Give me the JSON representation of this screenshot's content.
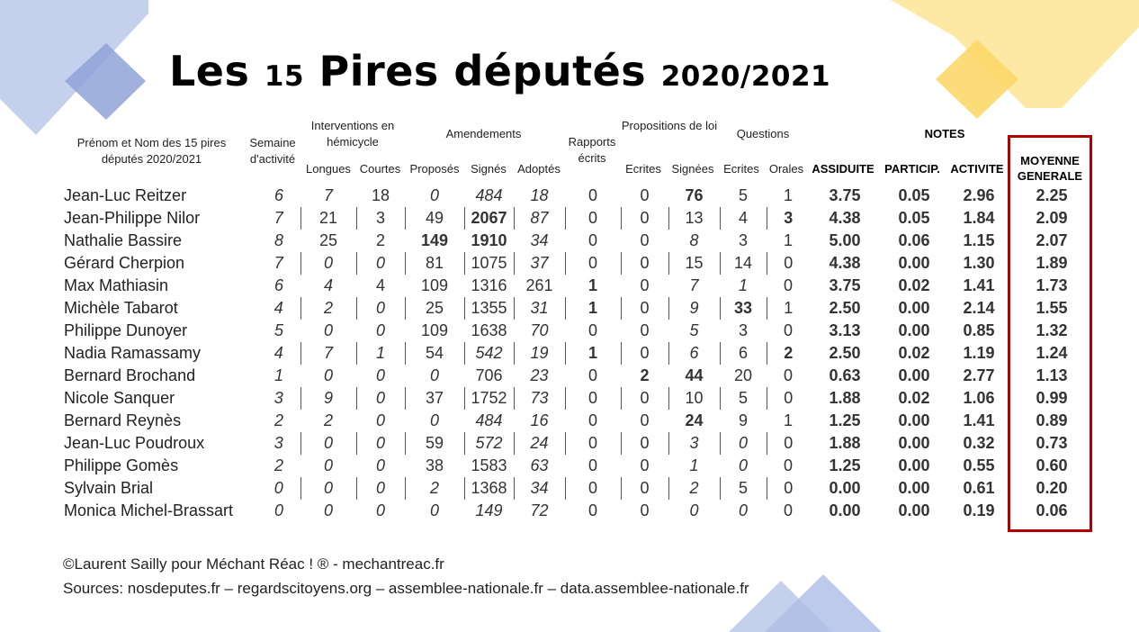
{
  "title": {
    "main_a": "Les ",
    "num": "15",
    "main_b": " Pires députés ",
    "year": "2020/2021"
  },
  "headers": {
    "name": "Prénom et Nom des 15 pires députés 2020/2021",
    "semaine": "Semaine d'activité",
    "interventions": "Interventions en hémicycle",
    "longues": "Longues",
    "courtes": "Courtes",
    "amendements": "Amendements",
    "proposes": "Proposés",
    "signes": "Signés",
    "adoptes": "Adoptés",
    "rapports": "Rapports écrits",
    "propositions": "Propositions de loi",
    "prop_ecrites": "Ecrites",
    "prop_signees": "Signées",
    "questions": "Questions",
    "q_ecrites": "Ecrites",
    "q_orales": "Orales",
    "notes": "NOTES",
    "assiduite": "ASSIDUITE",
    "particip": "PARTICIP.",
    "activite": "ACTIVITE",
    "moyenne": "MOYENNE GENERALE"
  },
  "colors": {
    "red": "#e00000",
    "green": "#1c8a1c",
    "frame": "#b00000"
  },
  "rows": [
    {
      "name": "Jean-Luc Reitzer",
      "cells": [
        {
          "v": "6",
          "s": "r"
        },
        {
          "v": "7",
          "s": "r"
        },
        {
          "v": "18",
          "s": ""
        },
        {
          "v": "0",
          "s": "r"
        },
        {
          "v": "484",
          "s": "r"
        },
        {
          "v": "18",
          "s": "r"
        },
        {
          "v": "0",
          "s": ""
        },
        {
          "v": "0",
          "s": ""
        },
        {
          "v": "76",
          "s": "g"
        },
        {
          "v": "5",
          "s": ""
        },
        {
          "v": "1",
          "s": ""
        },
        {
          "v": "3.75",
          "s": "b"
        },
        {
          "v": "0.05",
          "s": "b"
        },
        {
          "v": "2.96",
          "s": "b"
        },
        {
          "v": "2.25",
          "s": "b"
        }
      ]
    },
    {
      "name": "Jean-Philippe Nilor",
      "cells": [
        {
          "v": "7",
          "s": "r"
        },
        {
          "v": "21",
          "s": ""
        },
        {
          "v": "3",
          "s": ""
        },
        {
          "v": "49",
          "s": ""
        },
        {
          "v": "2067",
          "s": "g"
        },
        {
          "v": "87",
          "s": "r"
        },
        {
          "v": "0",
          "s": ""
        },
        {
          "v": "0",
          "s": ""
        },
        {
          "v": "13",
          "s": ""
        },
        {
          "v": "4",
          "s": ""
        },
        {
          "v": "3",
          "s": "g"
        },
        {
          "v": "4.38",
          "s": "b"
        },
        {
          "v": "0.05",
          "s": "b"
        },
        {
          "v": "1.84",
          "s": "b"
        },
        {
          "v": "2.09",
          "s": "b"
        }
      ]
    },
    {
      "name": "Nathalie Bassire",
      "cells": [
        {
          "v": "8",
          "s": "r"
        },
        {
          "v": "25",
          "s": ""
        },
        {
          "v": "2",
          "s": ""
        },
        {
          "v": "149",
          "s": "g"
        },
        {
          "v": "1910",
          "s": "g"
        },
        {
          "v": "34",
          "s": "r"
        },
        {
          "v": "0",
          "s": ""
        },
        {
          "v": "0",
          "s": ""
        },
        {
          "v": "8",
          "s": "r"
        },
        {
          "v": "3",
          "s": ""
        },
        {
          "v": "1",
          "s": ""
        },
        {
          "v": "5.00",
          "s": "b"
        },
        {
          "v": "0.06",
          "s": "b"
        },
        {
          "v": "1.15",
          "s": "b"
        },
        {
          "v": "2.07",
          "s": "b"
        }
      ]
    },
    {
      "name": "Gérard Cherpion",
      "cells": [
        {
          "v": "7",
          "s": "r"
        },
        {
          "v": "0",
          "s": "r"
        },
        {
          "v": "0",
          "s": "r"
        },
        {
          "v": "81",
          "s": ""
        },
        {
          "v": "1075",
          "s": ""
        },
        {
          "v": "37",
          "s": "r"
        },
        {
          "v": "0",
          "s": ""
        },
        {
          "v": "0",
          "s": ""
        },
        {
          "v": "15",
          "s": ""
        },
        {
          "v": "14",
          "s": ""
        },
        {
          "v": "0",
          "s": ""
        },
        {
          "v": "4.38",
          "s": "b"
        },
        {
          "v": "0.00",
          "s": "b"
        },
        {
          "v": "1.30",
          "s": "b"
        },
        {
          "v": "1.89",
          "s": "b"
        }
      ]
    },
    {
      "name": "Max Mathiasin",
      "cells": [
        {
          "v": "6",
          "s": "r"
        },
        {
          "v": "4",
          "s": "r"
        },
        {
          "v": "4",
          "s": ""
        },
        {
          "v": "109",
          "s": ""
        },
        {
          "v": "1316",
          "s": ""
        },
        {
          "v": "261",
          "s": ""
        },
        {
          "v": "1",
          "s": "g"
        },
        {
          "v": "0",
          "s": ""
        },
        {
          "v": "7",
          "s": "r"
        },
        {
          "v": "1",
          "s": "r"
        },
        {
          "v": "0",
          "s": ""
        },
        {
          "v": "3.75",
          "s": "b"
        },
        {
          "v": "0.02",
          "s": "b"
        },
        {
          "v": "1.41",
          "s": "b"
        },
        {
          "v": "1.73",
          "s": "b"
        }
      ]
    },
    {
      "name": "Michèle Tabarot",
      "cells": [
        {
          "v": "4",
          "s": "r"
        },
        {
          "v": "2",
          "s": "r"
        },
        {
          "v": "0",
          "s": "r"
        },
        {
          "v": "25",
          "s": ""
        },
        {
          "v": "1355",
          "s": ""
        },
        {
          "v": "31",
          "s": "r"
        },
        {
          "v": "1",
          "s": "g"
        },
        {
          "v": "0",
          "s": ""
        },
        {
          "v": "9",
          "s": "r"
        },
        {
          "v": "33",
          "s": "g"
        },
        {
          "v": "1",
          "s": ""
        },
        {
          "v": "2.50",
          "s": "b"
        },
        {
          "v": "0.00",
          "s": "b"
        },
        {
          "v": "2.14",
          "s": "b"
        },
        {
          "v": "1.55",
          "s": "b"
        }
      ]
    },
    {
      "name": "Philippe Dunoyer",
      "cells": [
        {
          "v": "5",
          "s": "r"
        },
        {
          "v": "0",
          "s": "r"
        },
        {
          "v": "0",
          "s": "r"
        },
        {
          "v": "109",
          "s": ""
        },
        {
          "v": "1638",
          "s": ""
        },
        {
          "v": "70",
          "s": "r"
        },
        {
          "v": "0",
          "s": ""
        },
        {
          "v": "0",
          "s": ""
        },
        {
          "v": "5",
          "s": "r"
        },
        {
          "v": "3",
          "s": ""
        },
        {
          "v": "0",
          "s": ""
        },
        {
          "v": "3.13",
          "s": "b"
        },
        {
          "v": "0.00",
          "s": "b"
        },
        {
          "v": "0.85",
          "s": "b"
        },
        {
          "v": "1.32",
          "s": "b"
        }
      ]
    },
    {
      "name": "Nadia Ramassamy",
      "cells": [
        {
          "v": "4",
          "s": "r"
        },
        {
          "v": "7",
          "s": "r"
        },
        {
          "v": "1",
          "s": "r"
        },
        {
          "v": "54",
          "s": ""
        },
        {
          "v": "542",
          "s": "r"
        },
        {
          "v": "19",
          "s": "r"
        },
        {
          "v": "1",
          "s": "g"
        },
        {
          "v": "0",
          "s": ""
        },
        {
          "v": "6",
          "s": "r"
        },
        {
          "v": "6",
          "s": ""
        },
        {
          "v": "2",
          "s": "g"
        },
        {
          "v": "2.50",
          "s": "b"
        },
        {
          "v": "0.02",
          "s": "b"
        },
        {
          "v": "1.19",
          "s": "b"
        },
        {
          "v": "1.24",
          "s": "b"
        }
      ]
    },
    {
      "name": "Bernard Brochand",
      "cells": [
        {
          "v": "1",
          "s": "r"
        },
        {
          "v": "0",
          "s": "r"
        },
        {
          "v": "0",
          "s": "r"
        },
        {
          "v": "0",
          "s": "r"
        },
        {
          "v": "706",
          "s": ""
        },
        {
          "v": "23",
          "s": "r"
        },
        {
          "v": "0",
          "s": ""
        },
        {
          "v": "2",
          "s": "g"
        },
        {
          "v": "44",
          "s": "g"
        },
        {
          "v": "20",
          "s": ""
        },
        {
          "v": "0",
          "s": ""
        },
        {
          "v": "0.63",
          "s": "b"
        },
        {
          "v": "0.00",
          "s": "b"
        },
        {
          "v": "2.77",
          "s": "b"
        },
        {
          "v": "1.13",
          "s": "b"
        }
      ]
    },
    {
      "name": "Nicole Sanquer",
      "cells": [
        {
          "v": "3",
          "s": "r"
        },
        {
          "v": "9",
          "s": "r"
        },
        {
          "v": "0",
          "s": "r"
        },
        {
          "v": "37",
          "s": ""
        },
        {
          "v": "1752",
          "s": ""
        },
        {
          "v": "73",
          "s": "r"
        },
        {
          "v": "0",
          "s": ""
        },
        {
          "v": "0",
          "s": ""
        },
        {
          "v": "10",
          "s": ""
        },
        {
          "v": "5",
          "s": ""
        },
        {
          "v": "0",
          "s": ""
        },
        {
          "v": "1.88",
          "s": "b"
        },
        {
          "v": "0.02",
          "s": "b"
        },
        {
          "v": "1.06",
          "s": "b"
        },
        {
          "v": "0.99",
          "s": "b"
        }
      ]
    },
    {
      "name": "Bernard Reynès",
      "cells": [
        {
          "v": "2",
          "s": "r"
        },
        {
          "v": "2",
          "s": "r"
        },
        {
          "v": "0",
          "s": "r"
        },
        {
          "v": "0",
          "s": "r"
        },
        {
          "v": "484",
          "s": "r"
        },
        {
          "v": "16",
          "s": "r"
        },
        {
          "v": "0",
          "s": ""
        },
        {
          "v": "0",
          "s": ""
        },
        {
          "v": "24",
          "s": "g"
        },
        {
          "v": "9",
          "s": ""
        },
        {
          "v": "1",
          "s": ""
        },
        {
          "v": "1.25",
          "s": "b"
        },
        {
          "v": "0.00",
          "s": "b"
        },
        {
          "v": "1.41",
          "s": "b"
        },
        {
          "v": "0.89",
          "s": "b"
        }
      ]
    },
    {
      "name": "Jean-Luc Poudroux",
      "cells": [
        {
          "v": "3",
          "s": "r"
        },
        {
          "v": "0",
          "s": "r"
        },
        {
          "v": "0",
          "s": "r"
        },
        {
          "v": "59",
          "s": ""
        },
        {
          "v": "572",
          "s": "r"
        },
        {
          "v": "24",
          "s": "r"
        },
        {
          "v": "0",
          "s": ""
        },
        {
          "v": "0",
          "s": ""
        },
        {
          "v": "3",
          "s": "r"
        },
        {
          "v": "0",
          "s": "r"
        },
        {
          "v": "0",
          "s": ""
        },
        {
          "v": "1.88",
          "s": "b"
        },
        {
          "v": "0.00",
          "s": "b"
        },
        {
          "v": "0.32",
          "s": "b"
        },
        {
          "v": "0.73",
          "s": "b"
        }
      ]
    },
    {
      "name": "Philippe Gomès",
      "cells": [
        {
          "v": "2",
          "s": "r"
        },
        {
          "v": "0",
          "s": "r"
        },
        {
          "v": "0",
          "s": "r"
        },
        {
          "v": "38",
          "s": ""
        },
        {
          "v": "1583",
          "s": ""
        },
        {
          "v": "63",
          "s": "r"
        },
        {
          "v": "0",
          "s": ""
        },
        {
          "v": "0",
          "s": ""
        },
        {
          "v": "1",
          "s": "r"
        },
        {
          "v": "0",
          "s": "r"
        },
        {
          "v": "0",
          "s": ""
        },
        {
          "v": "1.25",
          "s": "b"
        },
        {
          "v": "0.00",
          "s": "b"
        },
        {
          "v": "0.55",
          "s": "b"
        },
        {
          "v": "0.60",
          "s": "b"
        }
      ]
    },
    {
      "name": "Sylvain Brial",
      "cells": [
        {
          "v": "0",
          "s": "r"
        },
        {
          "v": "0",
          "s": "r"
        },
        {
          "v": "0",
          "s": "r"
        },
        {
          "v": "2",
          "s": "r"
        },
        {
          "v": "1368",
          "s": ""
        },
        {
          "v": "34",
          "s": "r"
        },
        {
          "v": "0",
          "s": ""
        },
        {
          "v": "0",
          "s": ""
        },
        {
          "v": "2",
          "s": "r"
        },
        {
          "v": "5",
          "s": ""
        },
        {
          "v": "0",
          "s": ""
        },
        {
          "v": "0.00",
          "s": "b"
        },
        {
          "v": "0.00",
          "s": "b"
        },
        {
          "v": "0.61",
          "s": "b"
        },
        {
          "v": "0.20",
          "s": "b"
        }
      ]
    },
    {
      "name": "Monica Michel-Brassart",
      "cells": [
        {
          "v": "0",
          "s": "r"
        },
        {
          "v": "0",
          "s": "r"
        },
        {
          "v": "0",
          "s": "r"
        },
        {
          "v": "0",
          "s": "r"
        },
        {
          "v": "149",
          "s": "r"
        },
        {
          "v": "72",
          "s": "r"
        },
        {
          "v": "0",
          "s": ""
        },
        {
          "v": "0",
          "s": ""
        },
        {
          "v": "0",
          "s": "r"
        },
        {
          "v": "0",
          "s": "r"
        },
        {
          "v": "0",
          "s": ""
        },
        {
          "v": "0.00",
          "s": "b"
        },
        {
          "v": "0.00",
          "s": "b"
        },
        {
          "v": "0.19",
          "s": "b"
        },
        {
          "v": "0.06",
          "s": "b"
        }
      ]
    }
  ],
  "separators": [
    [],
    [
      1,
      2,
      3,
      4,
      5,
      6,
      7,
      8,
      9,
      10
    ],
    [],
    [
      1,
      2,
      3,
      4,
      5,
      6,
      7,
      8,
      9,
      10
    ],
    [],
    [
      1,
      2,
      3,
      4,
      5,
      6,
      7,
      8,
      9,
      10
    ],
    [],
    [
      1,
      2,
      3,
      4,
      5,
      6,
      7,
      8,
      9,
      10
    ],
    [],
    [
      1,
      2,
      3,
      4,
      5,
      6,
      7,
      8,
      9,
      10
    ],
    [],
    [
      1,
      2,
      3,
      4,
      5,
      6,
      7,
      8,
      9,
      10
    ],
    [],
    [
      1,
      2,
      3,
      4,
      5,
      6,
      7,
      8,
      9,
      10
    ],
    []
  ],
  "footer": {
    "credit": "©Laurent Sailly pour Méchant Réac ! ® - mechantreac.fr",
    "sources": "Sources: nosdeputes.fr – regardscitoyens.org – assemblee-nationale.fr – data.assemblee-nationale.fr"
  }
}
